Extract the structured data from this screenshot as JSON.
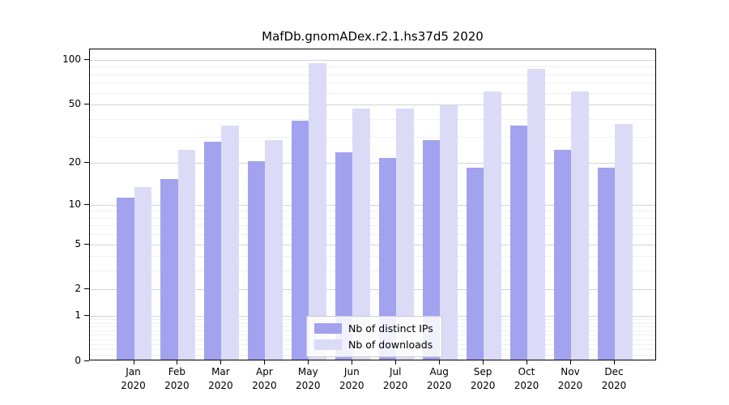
{
  "title": "MafDb.gnomADex.r2.1.hs37d5 2020",
  "colors": {
    "distinct_ips": "#a2a2ef",
    "downloads": "#dbdbf8",
    "major_grid": "#d4d4d4",
    "minor_grid": "#f0f0f0",
    "axis": "#000000",
    "background": "#ffffff"
  },
  "legend": {
    "items": [
      {
        "label": "Nb of distinct IPs",
        "color": "#a2a2ef"
      },
      {
        "label": "Nb of downloads",
        "color": "#dbdbf8"
      }
    ]
  },
  "chart_data": {
    "type": "bar",
    "title": "MafDb.gnomADex.r2.1.hs37d5 2020",
    "yscale": "log1p",
    "categories": [
      "Jan",
      "Feb",
      "Mar",
      "Apr",
      "May",
      "Jun",
      "Jul",
      "Aug",
      "Sep",
      "Oct",
      "Nov",
      "Dec"
    ],
    "xlabel_year": "2020",
    "series": [
      {
        "name": "Nb of distinct IPs",
        "color": "#a2a2ef",
        "values": [
          11,
          15,
          27,
          20,
          38,
          23,
          21,
          28,
          18,
          35,
          24,
          18
        ]
      },
      {
        "name": "Nb of downloads",
        "color": "#dbdbf8",
        "values": [
          13,
          24,
          35,
          28,
          93,
          46,
          46,
          48,
          60,
          85,
          60,
          36
        ]
      }
    ],
    "yticks": [
      100,
      50,
      20,
      10,
      5,
      2,
      1,
      0
    ],
    "minor_yticks": [
      90,
      80,
      70,
      60,
      40,
      30,
      9,
      8,
      7,
      6,
      4,
      3,
      0.9,
      0.8,
      0.7,
      0.6,
      0.5,
      0.4,
      0.3,
      0.2,
      0.1
    ],
    "ylim": [
      0,
      118
    ],
    "grid": true,
    "legend_position": "lower center",
    "xlabel": "",
    "ylabel": ""
  }
}
